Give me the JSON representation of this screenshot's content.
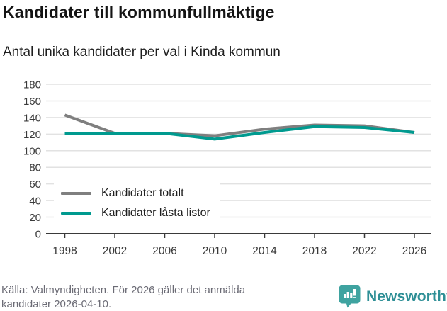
{
  "header": {
    "title": "Kandidater till kommunfullmäktige",
    "subtitle": "Antal unika kandidater per val i Kinda kommun"
  },
  "chart_data": {
    "type": "line",
    "title": "Kandidater till kommunfullmäktige",
    "subtitle": "Antal unika kandidater per val i Kinda kommun",
    "x": [
      1998,
      2002,
      2006,
      2010,
      2014,
      2018,
      2022,
      2026
    ],
    "series": [
      {
        "name": "Kandidater totalt",
        "color": "#7f7f7f",
        "values": [
          143,
          121,
          121,
          118,
          126,
          131,
          130,
          122
        ]
      },
      {
        "name": "Kandidater låsta listor",
        "color": "#009a8f",
        "values": [
          121,
          121,
          121,
          114,
          122,
          129,
          128,
          122
        ]
      }
    ],
    "ylim": [
      0,
      180
    ],
    "ytick_step": 20,
    "grid": true,
    "legend_position": "inside-bottom-left",
    "colors": {
      "gridline": "#e2e2e2",
      "axis": "#3a3a3a",
      "tick_label": "#3a3a3a"
    }
  },
  "footer": {
    "source": "Källa: Valmyndigheten. För 2026 gäller det anmälda kandidater 2026-04-10."
  },
  "branding": {
    "name": "Newsworthy",
    "icon": "newsworthy-speech-bubble-chart-icon",
    "text_color": "#2e8f96",
    "icon_color": "#3fa3a0"
  }
}
